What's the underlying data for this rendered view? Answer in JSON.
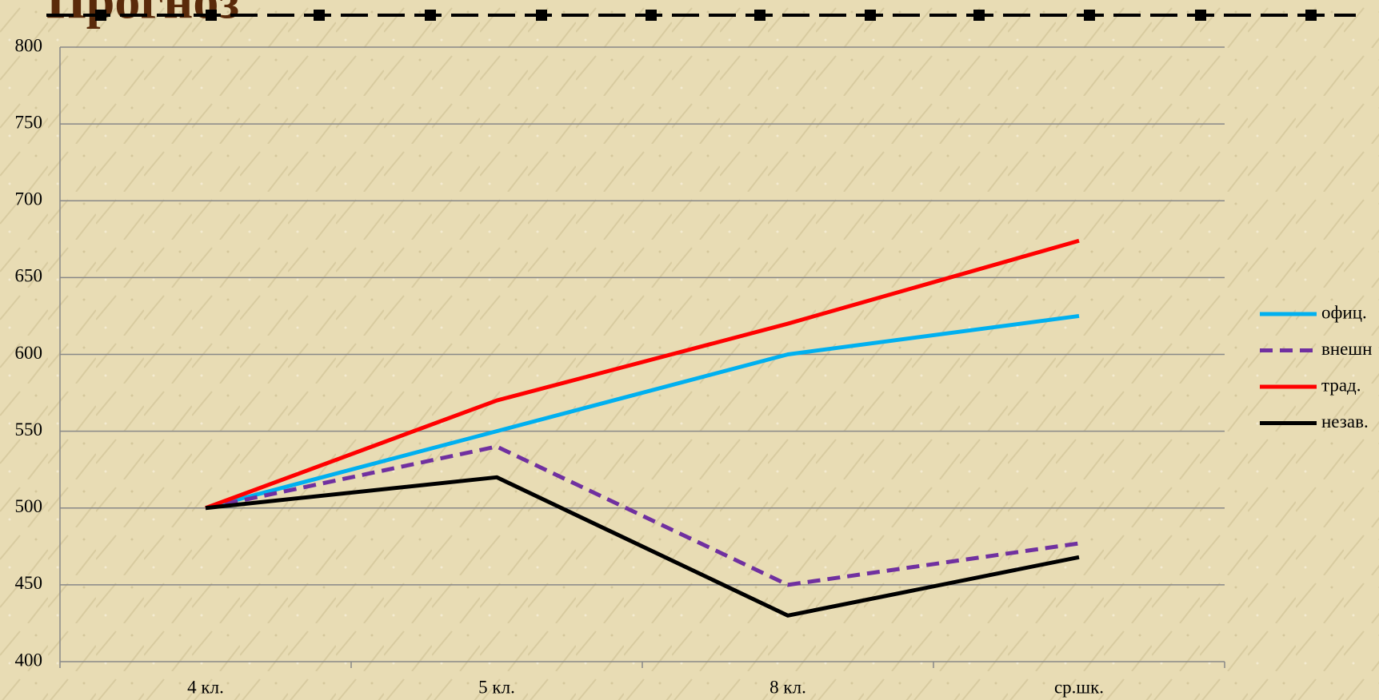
{
  "chart_data": {
    "type": "line",
    "title": "Прогноз",
    "categories": [
      "4 кл.",
      "5 кл.",
      "8 кл.",
      "ср.шк."
    ],
    "series": [
      {
        "name": "офиц.",
        "color": "#00b0f0",
        "dashed": false,
        "values": [
          500,
          550,
          600,
          625
        ]
      },
      {
        "name": "внешн",
        "color": "#7030a0",
        "dashed": true,
        "values": [
          500,
          540,
          450,
          477
        ]
      },
      {
        "name": "трад.",
        "color": "#ff0000",
        "dashed": false,
        "values": [
          500,
          570,
          620,
          674
        ]
      },
      {
        "name": "незав.",
        "color": "#000000",
        "dashed": false,
        "values": [
          500,
          520,
          430,
          468
        ]
      }
    ],
    "ylim": [
      400,
      800
    ],
    "yticks": [
      400,
      450,
      500,
      550,
      600,
      650,
      700,
      750,
      800
    ],
    "grid": true,
    "legend": "right"
  }
}
